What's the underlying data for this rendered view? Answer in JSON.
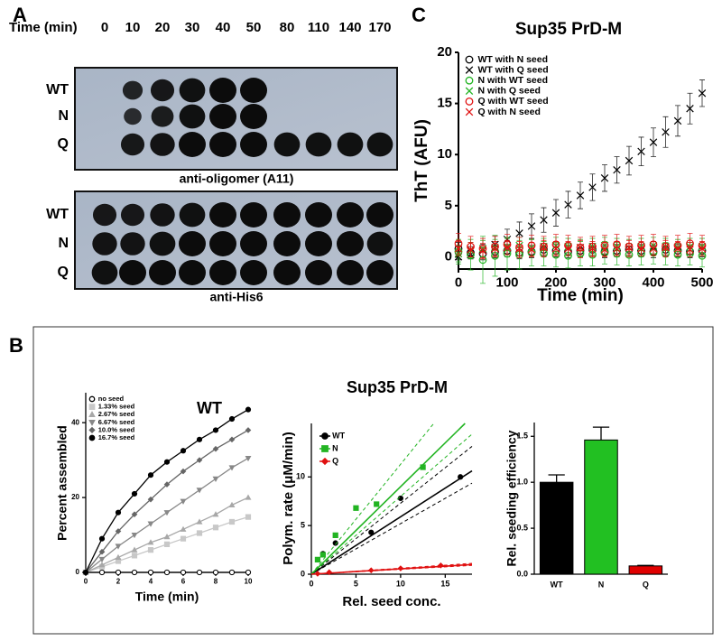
{
  "panel_labels": [
    "A",
    "B",
    "C"
  ],
  "blot": {
    "time_label": "Time (min)",
    "times": [
      0,
      10,
      20,
      30,
      40,
      50,
      80,
      110,
      140,
      170
    ],
    "panels": [
      {
        "rows": [
          "WT",
          "N",
          "Q"
        ],
        "caption": "anti-oligomer (A11)"
      },
      {
        "rows": [
          "WT",
          "N",
          "Q"
        ],
        "caption": "anti-His6"
      }
    ]
  },
  "chart_data": [
    {
      "type": "scatter",
      "title": "Sup35 PrD-M",
      "x_label": "Time (min)",
      "y_label": "ThT (AFU)",
      "x": [
        0,
        25,
        50,
        75,
        100,
        125,
        150,
        175,
        200,
        225,
        250,
        275,
        300,
        325,
        350,
        375,
        400,
        425,
        450,
        475,
        500
      ],
      "xlim": [
        0,
        500
      ],
      "xticks": [
        0,
        100,
        200,
        300,
        400,
        500
      ],
      "ylim": [
        -1.2,
        20
      ],
      "yticks": [
        0,
        5,
        10,
        15,
        20
      ],
      "legend": "upper left",
      "series": [
        {
          "name": "WT with N seed",
          "color": "#000000",
          "marker": "o",
          "values": [
            0.8,
            0.4,
            0.3,
            0.5,
            0.6,
            0.4,
            0.5,
            0.7,
            0.6,
            0.5,
            0.6,
            0.7,
            0.5,
            0.6,
            0.7,
            0.6,
            0.5,
            0.7,
            0.6,
            0.5,
            0.6
          ],
          "errors": [
            0.6,
            0.6,
            0.6,
            0.6,
            0.6,
            0.6,
            0.6,
            0.6,
            0.6,
            0.6,
            0.6,
            0.6,
            0.6,
            0.6,
            0.6,
            0.6,
            0.6,
            0.6,
            0.6,
            0.6,
            0.6
          ]
        },
        {
          "name": "WT with Q seed",
          "color": "#000000",
          "marker": "x",
          "values": [
            0,
            0.2,
            0.6,
            1.2,
            1.7,
            2.3,
            3.0,
            3.6,
            4.3,
            5.1,
            6.0,
            6.8,
            7.7,
            8.5,
            9.4,
            10.3,
            11.2,
            12.2,
            13.3,
            14.5,
            16.0
          ],
          "errors": [
            0.3,
            0.4,
            0.6,
            0.8,
            1.0,
            1.1,
            1.2,
            1.2,
            1.3,
            1.3,
            1.3,
            1.3,
            1.3,
            1.3,
            1.4,
            1.4,
            1.4,
            1.5,
            1.5,
            1.5,
            1.3
          ]
        },
        {
          "name": "N with WT seed",
          "color": "#22b422",
          "marker": "o",
          "values": [
            0.5,
            0.2,
            -0.3,
            0.1,
            0.3,
            0.2,
            0.4,
            0.3,
            0.2,
            0.1,
            0.3,
            0.2,
            0.4,
            0.3,
            0.2,
            0.3,
            0.4,
            0.3,
            0.2,
            0.3,
            0.1
          ],
          "errors": [
            1.2,
            1.5,
            2.3,
            2.0,
            1.6,
            1.4,
            1.3,
            1.2,
            1.2,
            1.2,
            1.2,
            1.1,
            1.1,
            1.1,
            1.1,
            1.1,
            1.1,
            1.1,
            1.1,
            1.1,
            1.1
          ]
        },
        {
          "name": "N with Q seed",
          "color": "#22b422",
          "marker": "x",
          "values": [
            0.3,
            0.6,
            0.8,
            0.9,
            1.0,
            1.1,
            0.9,
            1.0,
            1.1,
            1.0,
            0.9,
            1.0,
            1.1,
            1.0,
            0.9,
            1.0,
            1.1,
            1.0,
            0.9,
            1.0,
            1.0
          ],
          "errors": [
            0.8,
            0.8,
            0.8,
            0.8,
            0.8,
            0.8,
            0.8,
            0.8,
            0.8,
            0.8,
            0.8,
            0.8,
            0.8,
            0.8,
            0.8,
            0.8,
            0.8,
            0.8,
            0.8,
            0.8,
            0.8
          ]
        },
        {
          "name": "Q with WT seed",
          "color": "#e01010",
          "marker": "o",
          "values": [
            1.3,
            1.0,
            0.8,
            1.0,
            1.2,
            0.9,
            1.1,
            1.0,
            1.2,
            1.1,
            0.9,
            1.0,
            1.1,
            1.2,
            1.0,
            1.1,
            1.2,
            1.0,
            1.1,
            1.3,
            1.1
          ],
          "errors": [
            1.0,
            1.0,
            1.0,
            1.0,
            1.0,
            1.0,
            1.0,
            1.0,
            1.0,
            1.0,
            1.0,
            1.0,
            1.0,
            1.0,
            1.0,
            1.0,
            1.0,
            1.0,
            1.0,
            1.0,
            1.0
          ]
        },
        {
          "name": "Q with N seed",
          "color": "#e01010",
          "marker": "x",
          "values": [
            0.8,
            0.7,
            0.6,
            0.8,
            0.9,
            0.8,
            0.7,
            0.9,
            0.8,
            0.8,
            0.9,
            0.8,
            0.7,
            0.8,
            0.9,
            0.8,
            0.8,
            0.9,
            0.8,
            0.7,
            0.8
          ],
          "errors": [
            0.7,
            0.7,
            0.7,
            0.7,
            0.7,
            0.7,
            0.7,
            0.7,
            0.7,
            0.7,
            0.7,
            0.7,
            0.7,
            0.7,
            0.7,
            0.7,
            0.7,
            0.7,
            0.7,
            0.7,
            0.7
          ]
        }
      ]
    },
    {
      "type": "line",
      "title": "WT",
      "x_label": "Time (min)",
      "y_label": "Percent assembled",
      "x": [
        0,
        1,
        2,
        3,
        4,
        5,
        6,
        7,
        8,
        9,
        10
      ],
      "xlim": [
        0,
        10
      ],
      "xticks": [
        0,
        2,
        4,
        6,
        8,
        10
      ],
      "ylim": [
        0,
        48
      ],
      "yticks": [
        0,
        20,
        40
      ],
      "legend": "upper left",
      "series": [
        {
          "name": "no seed",
          "color": "#000000",
          "marker": "o",
          "filled": false,
          "values": [
            0,
            0,
            0,
            0,
            0,
            0,
            0,
            0,
            0,
            0,
            0
          ]
        },
        {
          "name": "1.33% seed",
          "color": "#c8c8c8",
          "marker": "s",
          "filled": true,
          "values": [
            0,
            1.5,
            3,
            4.5,
            6,
            7.5,
            9,
            10.5,
            12,
            13.5,
            14.8
          ]
        },
        {
          "name": "2.67% seed",
          "color": "#a8a8a8",
          "marker": "^",
          "filled": true,
          "values": [
            0,
            2,
            4,
            6,
            8,
            9.5,
            11.5,
            13.5,
            15.5,
            18,
            20
          ]
        },
        {
          "name": "6.67% seed",
          "color": "#888888",
          "marker": "v",
          "filled": true,
          "values": [
            0,
            3.5,
            7,
            10,
            13,
            16,
            19,
            22,
            25,
            28,
            30.5
          ]
        },
        {
          "name": "10.0% seed",
          "color": "#666666",
          "marker": "d",
          "filled": true,
          "values": [
            0,
            5.5,
            11,
            15.5,
            19.5,
            23.5,
            27,
            30,
            33,
            35.5,
            38
          ]
        },
        {
          "name": "16.7% seed",
          "color": "#000000",
          "marker": "o",
          "filled": true,
          "values": [
            0,
            9,
            16,
            21,
            26,
            29.5,
            32.5,
            35.5,
            38,
            41,
            43.5
          ]
        }
      ]
    },
    {
      "type": "fit",
      "title": "Sup35 PrD-M",
      "x_label": "Rel. seed conc.",
      "y_label": "Polym. rate (μM/min)",
      "xlim": [
        0,
        18
      ],
      "xticks": [
        0,
        5,
        10,
        15
      ],
      "ylim": [
        0,
        15.5
      ],
      "yticks": [
        0,
        5,
        10
      ],
      "legend": "upper left",
      "series": [
        {
          "name": "WT",
          "color": "#000000",
          "marker": "o",
          "x": [
            1.3,
            2.7,
            6.7,
            10,
            16.7
          ],
          "values": [
            2.1,
            3.2,
            4.3,
            7.8,
            10.0
          ],
          "fit_slope": 0.59,
          "ci_slopes": [
            0.52,
            0.73
          ]
        },
        {
          "name": "N",
          "color": "#22b422",
          "marker": "s",
          "x": [
            0.7,
            1.3,
            2.7,
            5,
            7.3,
            12.5
          ],
          "values": [
            1.5,
            2.0,
            4.0,
            6.8,
            7.2,
            11.0
          ],
          "fit_slope": 0.9,
          "ci_slopes": [
            0.8,
            1.13
          ]
        },
        {
          "name": "Q",
          "color": "#e01010",
          "marker": "d",
          "x": [
            0.7,
            2,
            6.7,
            10,
            14.5
          ],
          "values": [
            0.05,
            0.2,
            0.4,
            0.6,
            0.9
          ],
          "fit_slope": 0.055,
          "ci_slopes": [
            0.05,
            0.062
          ]
        }
      ]
    },
    {
      "type": "bar",
      "y_label": "Rel. seeding efficiency",
      "categories": [
        "WT",
        "N",
        "Q"
      ],
      "values": [
        1.0,
        1.46,
        0.09
      ],
      "errors": [
        0.08,
        0.14,
        0.005
      ],
      "colors": [
        "#000000",
        "#22c022",
        "#e00000"
      ],
      "ylim": [
        0,
        1.65
      ],
      "yticks": [
        {
          "value": 0,
          "label": "0.0"
        },
        {
          "value": 0.5,
          "label": "0.5"
        },
        {
          "value": 1,
          "label": "1.0"
        },
        {
          "value": 1.5,
          "label": "1.5"
        }
      ]
    }
  ]
}
